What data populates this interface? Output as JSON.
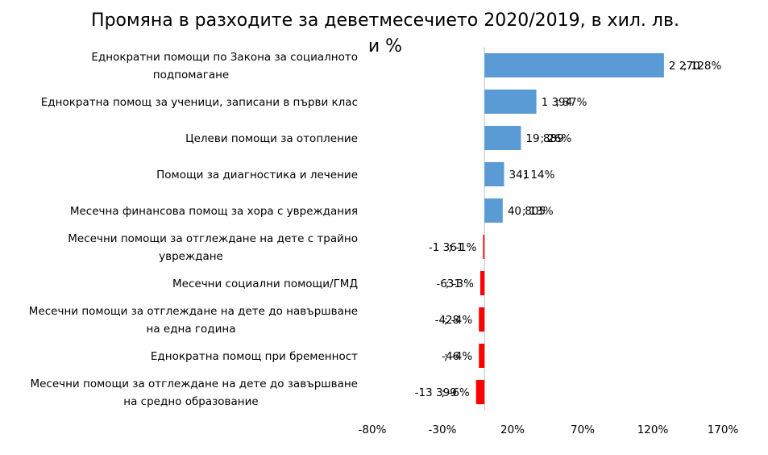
{
  "chart_data": {
    "type": "bar",
    "orientation": "horizontal",
    "title": "Промяна в разходите за деветмесечието 2020/2019, в хил. лв. и %",
    "title_lines": [
      "Промяна в разходите за деветмесечието 2020/2019, в хил. лв.",
      "и %"
    ],
    "categories": [
      [
        "Еднократни помощи по Закона за социалното",
        "подпомагане"
      ],
      [
        "Еднократна помощ за ученици, записани в първи клас"
      ],
      [
        "Целеви помощи за отопление"
      ],
      [
        "Помощи за диагностика и лечение"
      ],
      [
        "Месечна финансова помощ за хора с увреждания"
      ],
      [
        "Месечни помощи за отглеждане на дете с трайно",
        "увреждане"
      ],
      [
        "Месечни социални помощи/ГМД"
      ],
      [
        "Месечни помощи за отглеждане на дете до навършване",
        "на една година"
      ],
      [
        "Еднократна помощ при бременност"
      ],
      [
        "Месечни помощи за отглеждане на дете до завършване",
        "на средно образование"
      ]
    ],
    "values": [
      128,
      37,
      26,
      14,
      13,
      -1,
      -3,
      -4,
      -4,
      -6
    ],
    "amounts": [
      "2 270",
      "1 394",
      "19 889",
      "341",
      "40 805",
      "-1 361",
      "-631",
      "-428",
      "-46",
      "-13 399"
    ],
    "data_labels": [
      "; 128%",
      "; 37%",
      "; 26%",
      "; 14%",
      "; 13%",
      "; -1%",
      "; -3%",
      "; -4%",
      "; -4%",
      "; -6%"
    ],
    "x_ticks": [
      "-80%",
      "-30%",
      "20%",
      "70%",
      "120%",
      "170%"
    ],
    "x_tick_values": [
      -80,
      -30,
      20,
      70,
      120,
      170
    ],
    "xlim": [
      -80,
      170
    ],
    "xlabel": "",
    "ylabel": "",
    "positive_color": "#5B9BD5",
    "negative_color": "#FF0000",
    "axis_color": "#BFBFBF",
    "grid": false,
    "legend": "none"
  }
}
